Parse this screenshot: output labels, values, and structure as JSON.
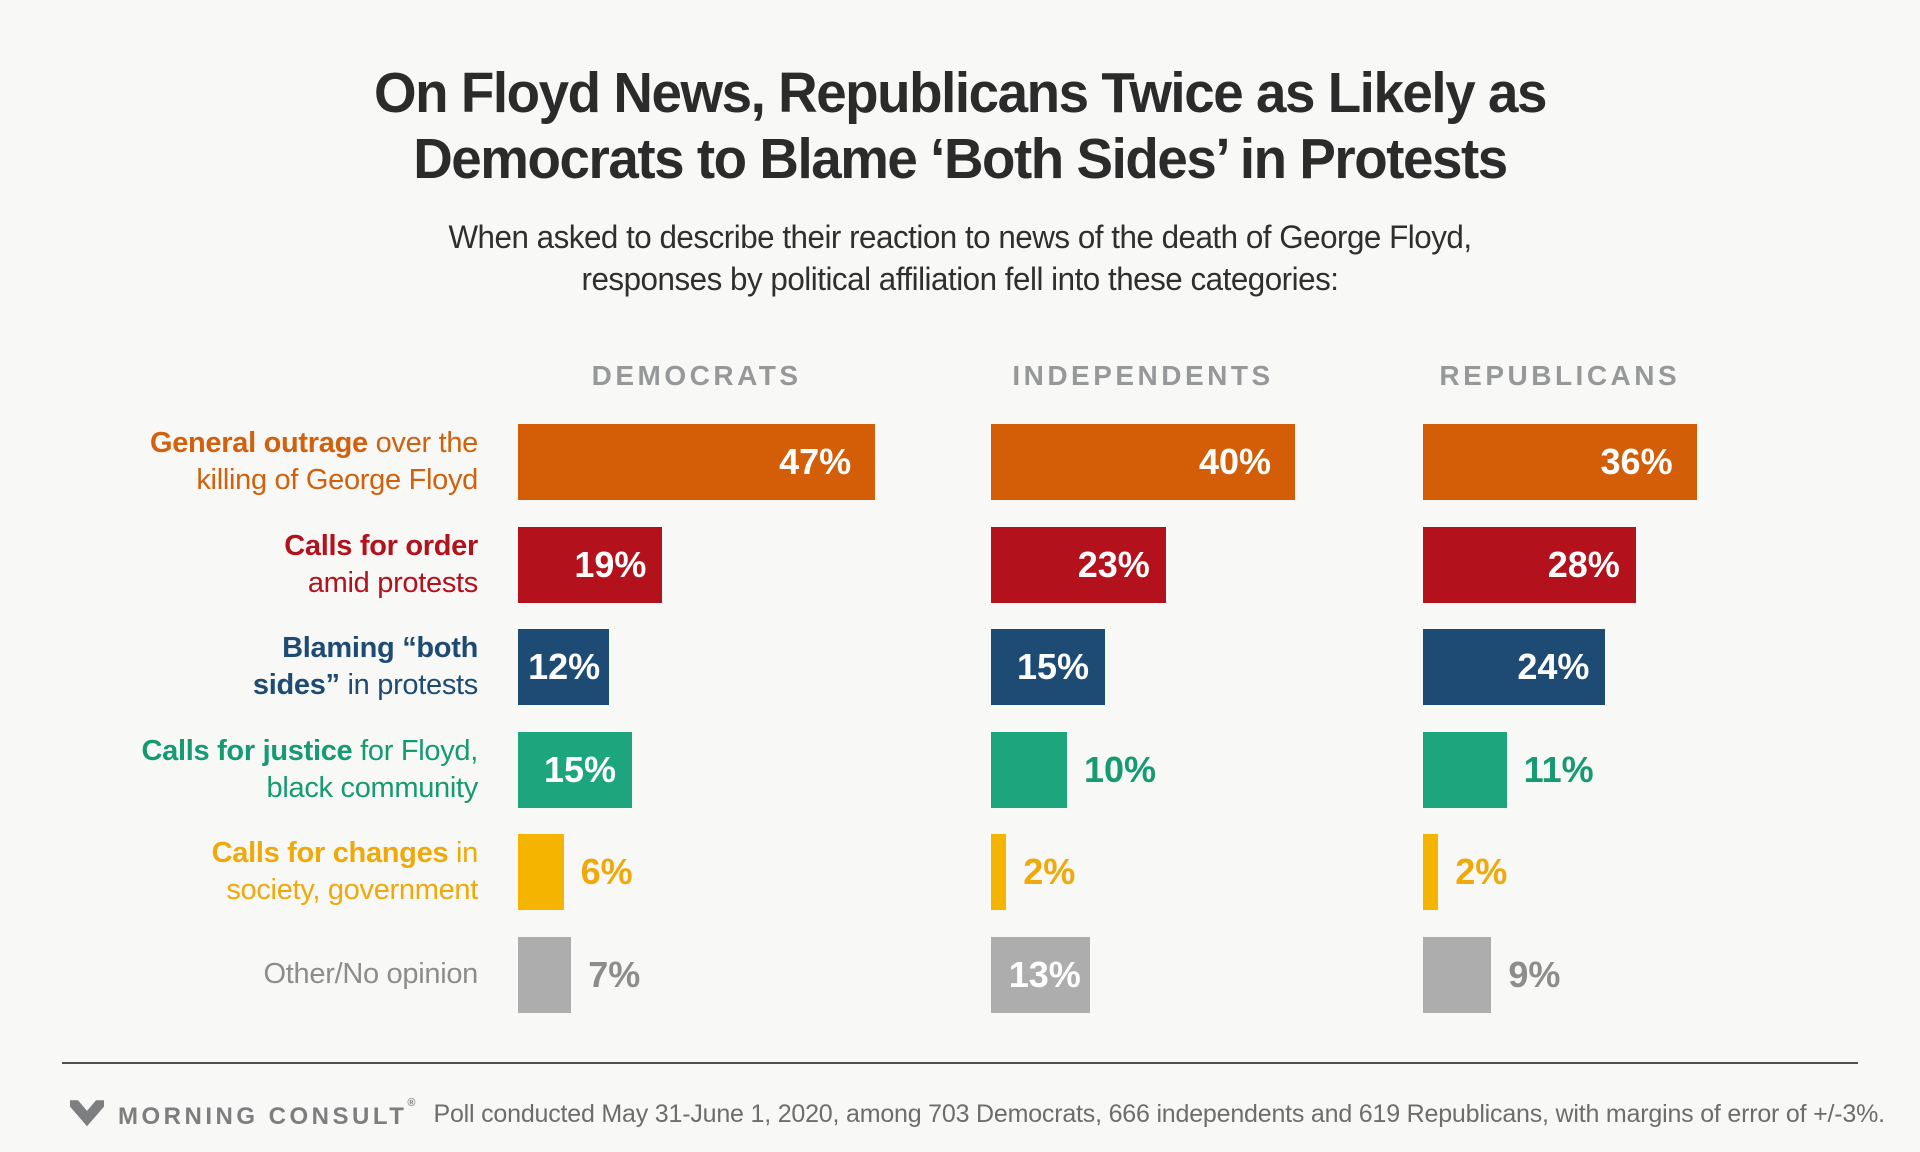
{
  "page": {
    "background": "#f8f8f6"
  },
  "header": {
    "title_line1": "On Floyd News, Republicans Twice as Likely as",
    "title_line2": "Democrats to Blame ‘Both Sides’ in Protests",
    "subtitle_line1": "When asked to describe their reaction to news of the death of George Floyd,",
    "subtitle_line2": "responses by political affiliation fell into these categories:"
  },
  "chart_data": {
    "type": "bar",
    "orientation": "horizontal",
    "unit": "%",
    "value_range": [
      0,
      47
    ],
    "grid": false,
    "legend_position": "column-headers-top",
    "groups": [
      "DEMOCRATS",
      "INDEPENDENTS",
      "REPUBLICANS"
    ],
    "group_header_color": "#97989a",
    "categories": [
      "General outrage over the killing of George Floyd",
      "Calls for order amid protests",
      "Blaming “both sides” in protests",
      "Calls for justice for Floyd, black community",
      "Calls for changes in society, government",
      "Other/No opinion"
    ],
    "series": [
      {
        "name": "DEMOCRATS",
        "values": [
          47,
          19,
          12,
          15,
          6,
          7
        ]
      },
      {
        "name": "INDEPENDENTS",
        "values": [
          40,
          23,
          15,
          10,
          2,
          13
        ]
      },
      {
        "name": "REPUBLICANS",
        "values": [
          36,
          28,
          24,
          11,
          2,
          9
        ]
      }
    ],
    "rows": [
      {
        "color": "#d45d07",
        "label_color": "#d2610d",
        "line1": [
          {
            "text": "General outrage",
            "bold": true
          },
          {
            "text": " over the",
            "bold": false
          }
        ],
        "line2": [
          {
            "text": "killing of George Floyd",
            "bold": false
          }
        ]
      },
      {
        "color": "#b3111c",
        "label_color": "#b3111c",
        "line1": [
          {
            "text": "Calls for order",
            "bold": true
          }
        ],
        "line2": [
          {
            "text": "amid protests",
            "bold": false
          }
        ]
      },
      {
        "color": "#1e4b74",
        "label_color": "#1e4b74",
        "line1": [
          {
            "text": "Blaming “both",
            "bold": true
          }
        ],
        "line2": [
          {
            "text": "sides”",
            "bold": true
          },
          {
            "text": " in protests",
            "bold": false
          }
        ]
      },
      {
        "color": "#1da57e",
        "label_color": "#169a72",
        "line1": [
          {
            "text": "Calls for justice",
            "bold": true
          },
          {
            "text": " for Floyd,",
            "bold": false
          }
        ],
        "line2": [
          {
            "text": "black community",
            "bold": false
          }
        ]
      },
      {
        "color": "#f5b400",
        "label_color": "#efa90a",
        "line1": [
          {
            "text": "Calls for changes",
            "bold": true
          },
          {
            "text": " in",
            "bold": false
          }
        ],
        "line2": [
          {
            "text": "society, government",
            "bold": false
          }
        ]
      },
      {
        "color": "#adadad",
        "label_color": "#8d8d8d",
        "line1": [
          {
            "text": "Other/No opinion",
            "bold": false
          }
        ],
        "line2": []
      }
    ],
    "value_label_inside_color": "#ffffff",
    "inside_label_min_value": 12
  },
  "footer": {
    "brand": "MORNING CONSULT",
    "registered_mark": "®",
    "source_text": "Poll conducted May 31-June 1, 2020, among 703 Democrats, 666 independents and 619 Republicans, with margins of error of +/-3%."
  }
}
